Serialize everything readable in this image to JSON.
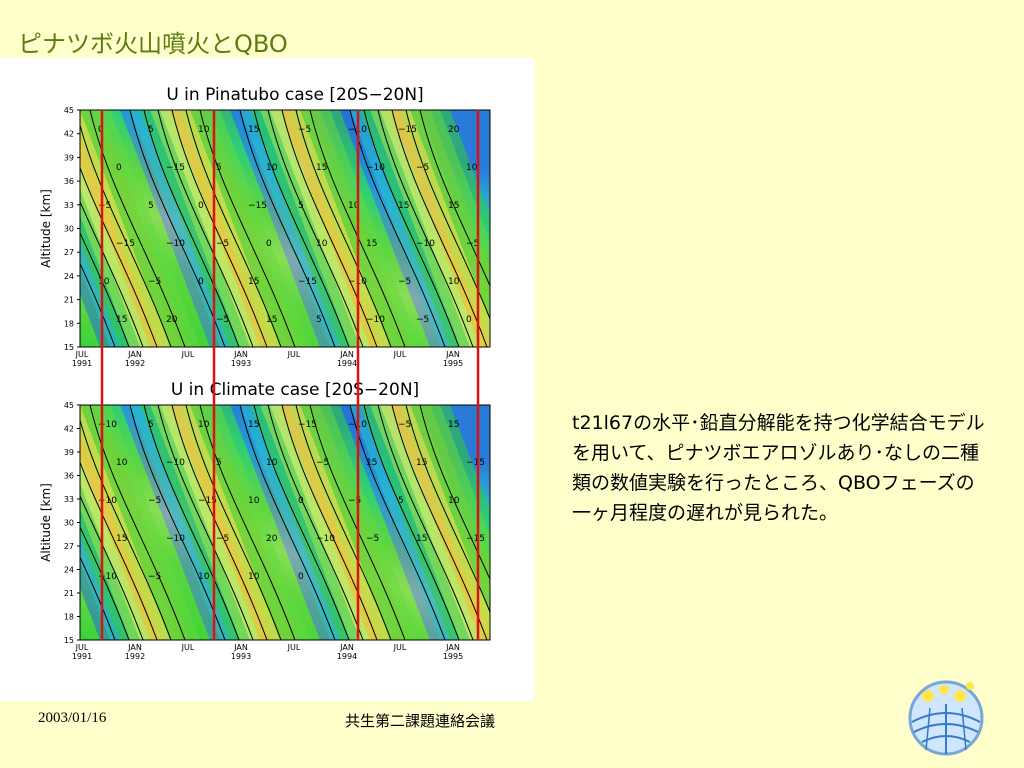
{
  "slide": {
    "title": "ピナツボ火山噴火とQBO",
    "body": "t21l67の水平･鉛直分解能を持つ化学結合モデルを用いて、ピナツボエアロゾルあり･なしの二種類の数値実験を行ったところ、QBOフェーズの一ヶ月程度の遅れが見られた。",
    "footer_date": "2003/01/16",
    "footer_meeting": "共生第二課題連絡会議"
  },
  "colors": {
    "background": "#ffffcc",
    "title": "#5c7c10",
    "marker_line": "#dd1111"
  },
  "logo_icon": "globe-stars-logo-icon",
  "chart_data": [
    {
      "type": "heatmap",
      "title": "U in Pinatubo case [20S−20N]",
      "ylabel": "Altitude [km]",
      "ylim": [
        15,
        45
      ],
      "yticks": [
        "15",
        "18",
        "21",
        "24",
        "27",
        "30",
        "33",
        "36",
        "39",
        "42",
        "45"
      ],
      "xticks": [
        "JUL\n1991",
        "JAN\n1992",
        "JUL",
        "JAN\n1993",
        "JUL",
        "JAN\n1994",
        "JUL",
        "JAN\n1995"
      ],
      "contour_labels": [
        "0",
        "5",
        "10",
        "15",
        "−5",
        "−10",
        "−15",
        "20",
        "0",
        "−15",
        "5",
        "10",
        "15",
        "−10",
        "−5",
        "10",
        "−5",
        "5",
        "0",
        "−15",
        "5",
        "10",
        "15",
        "15",
        "−15",
        "−10",
        "−5",
        "0",
        "10",
        "15",
        "−10",
        "−5",
        "10",
        "−5",
        "0",
        "15",
        "−15",
        "−10",
        "−5",
        "10",
        "15",
        "20",
        "−5",
        "15",
        "5",
        "−10",
        "−5",
        "0"
      ]
    },
    {
      "type": "heatmap",
      "title": "U in Climate case [20S−20N]",
      "ylabel": "Altitude [km]",
      "ylim": [
        15,
        45
      ],
      "yticks": [
        "15",
        "18",
        "21",
        "24",
        "27",
        "30",
        "33",
        "36",
        "39",
        "42",
        "45"
      ],
      "xticks": [
        "JUL\n1991",
        "JAN\n1992",
        "JUL",
        "JAN\n1993",
        "JUL",
        "JAN\n1994",
        "JUL",
        "JAN\n1995"
      ],
      "contour_labels": [
        "−10",
        "5",
        "10",
        "15",
        "−15",
        "−10",
        "−5",
        "15",
        "10",
        "−10",
        "5",
        "10",
        "−5",
        "15",
        "15",
        "−15",
        "−10",
        "−5",
        "−15",
        "10",
        "0",
        "−5",
        "5",
        "10",
        "15",
        "−10",
        "−5",
        "20",
        "−10",
        "−5",
        "15",
        "−15",
        "−10",
        "−5",
        "10",
        "10",
        "0"
      ]
    }
  ]
}
